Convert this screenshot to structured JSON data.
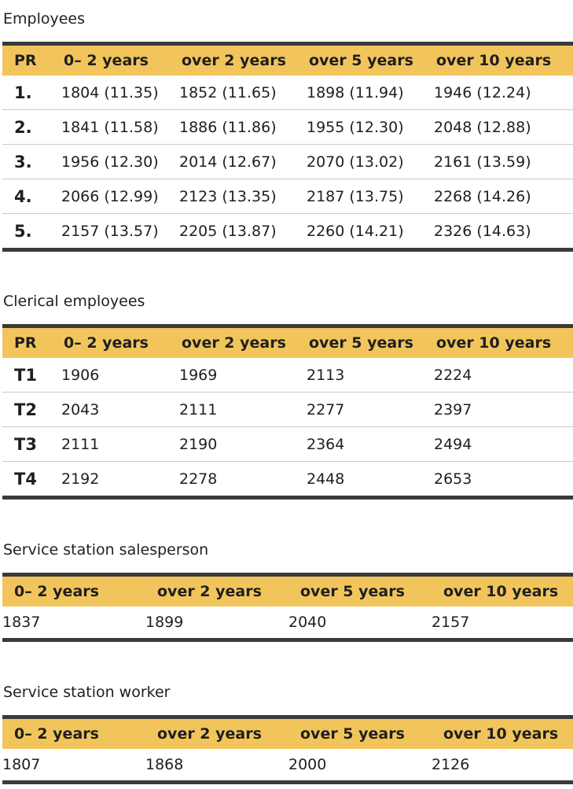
{
  "employees": {
    "title": "Employees",
    "headers": [
      "PR",
      "0– 2 years",
      "over 2 years",
      "over 5 years",
      "over 10 years"
    ],
    "rows": [
      [
        "1.",
        "1804 (11.35)",
        "1852 (11.65)",
        "1898 (11.94)",
        "1946 (12.24)"
      ],
      [
        "2.",
        "1841 (11.58)",
        "1886 (11.86)",
        "1955 (12.30)",
        "2048 (12.88)"
      ],
      [
        "3.",
        "1956 (12.30)",
        "2014 (12.67)",
        "2070 (13.02)",
        "2161 (13.59)"
      ],
      [
        "4.",
        "2066 (12.99)",
        "2123 (13.35)",
        "2187 (13.75)",
        "2268 (14.26)"
      ],
      [
        "5.",
        "2157 (13.57)",
        "2205 (13.87)",
        "2260 (14.21)",
        "2326 (14.63)"
      ]
    ]
  },
  "clerical": {
    "title": "Clerical employees",
    "headers": [
      "PR",
      "0– 2 years",
      "over 2 years",
      "over 5 years",
      "over 10 years"
    ],
    "rows": [
      [
        "T1",
        "1906",
        "1969",
        "2113",
        "2224"
      ],
      [
        "T2",
        "2043",
        "2111",
        "2277",
        "2397"
      ],
      [
        "T3",
        "2111",
        "2190",
        "2364",
        "2494"
      ],
      [
        "T4",
        "2192",
        "2278",
        "2448",
        "2653"
      ]
    ]
  },
  "salesperson": {
    "title": "Service station salesperson",
    "headers": [
      "0– 2 years",
      "over 2 years",
      "over 5 years",
      "over 10 years"
    ],
    "rows": [
      [
        "1837",
        "1899",
        "2040",
        "2157"
      ]
    ]
  },
  "worker": {
    "title": "Service station worker",
    "headers": [
      "0– 2 years",
      "over 2 years",
      "over 5 years",
      "over 10 years"
    ],
    "rows": [
      [
        "1807",
        "1868",
        "2000",
        "2126"
      ]
    ]
  },
  "colors": {
    "header_bg": "#f2c55c",
    "rule": "#3a3a3a",
    "row_divider": "#c9c9c9",
    "text": "#1f1f1f"
  }
}
